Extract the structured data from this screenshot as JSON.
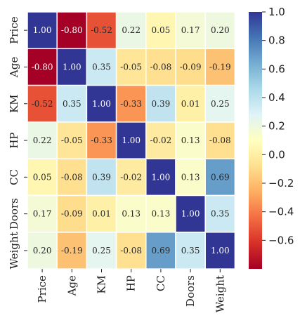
{
  "chart_data": {
    "type": "heatmap",
    "title": "",
    "xlabel": "",
    "ylabel": "",
    "x_categories": [
      "Price",
      "Age",
      "KM",
      "HP",
      "CC",
      "Doors",
      "Weight"
    ],
    "y_categories": [
      "Price",
      "Age",
      "KM",
      "HP",
      "CC",
      "Doors",
      "Weight"
    ],
    "values": [
      [
        1.0,
        -0.8,
        -0.52,
        0.22,
        0.05,
        0.17,
        0.2
      ],
      [
        -0.8,
        1.0,
        0.35,
        -0.05,
        -0.08,
        -0.09,
        -0.19
      ],
      [
        -0.52,
        0.35,
        1.0,
        -0.33,
        0.39,
        0.01,
        0.25
      ],
      [
        0.22,
        -0.05,
        -0.33,
        1.0,
        -0.02,
        0.13,
        -0.08
      ],
      [
        0.05,
        -0.08,
        0.39,
        -0.02,
        1.0,
        0.13,
        0.69
      ],
      [
        0.17,
        -0.09,
        0.01,
        0.13,
        0.13,
        1.0,
        0.35
      ],
      [
        0.2,
        -0.19,
        0.25,
        -0.08,
        0.69,
        0.35,
        1.0
      ]
    ],
    "annotations": [
      [
        "1.00",
        "-0.80",
        "-0.52",
        "0.22",
        "0.05",
        "0.17",
        "0.20"
      ],
      [
        "-0.80",
        "1.00",
        "0.35",
        "-0.05",
        "-0.08",
        "-0.09",
        "-0.19"
      ],
      [
        "-0.52",
        "0.35",
        "1.00",
        "-0.33",
        "0.39",
        "0.01",
        "0.25"
      ],
      [
        "0.22",
        "-0.05",
        "-0.33",
        "1.00",
        "-0.02",
        "0.13",
        "-0.08"
      ],
      [
        "0.05",
        "-0.08",
        "0.39",
        "-0.02",
        "1.00",
        "0.13",
        "0.69"
      ],
      [
        "0.17",
        "-0.09",
        "0.01",
        "0.13",
        "0.13",
        "1.00",
        "0.35"
      ],
      [
        "0.20",
        "-0.19",
        "0.25",
        "-0.08",
        "0.69",
        "0.35",
        "1.00"
      ]
    ],
    "colormap": "RdYlBu",
    "vmin": -0.8,
    "vmax": 1.0,
    "colorbar": {
      "ticks": [
        1.0,
        0.8,
        0.6,
        0.4,
        0.2,
        0.0,
        -0.2,
        -0.4,
        -0.6
      ],
      "tick_labels": [
        "1.0",
        "0.8",
        "0.6",
        "0.4",
        "0.2",
        "0.0",
        "−0.2",
        "−0.4",
        "−0.6"
      ]
    },
    "grid": true,
    "cell_border_color": "#ffffff"
  }
}
